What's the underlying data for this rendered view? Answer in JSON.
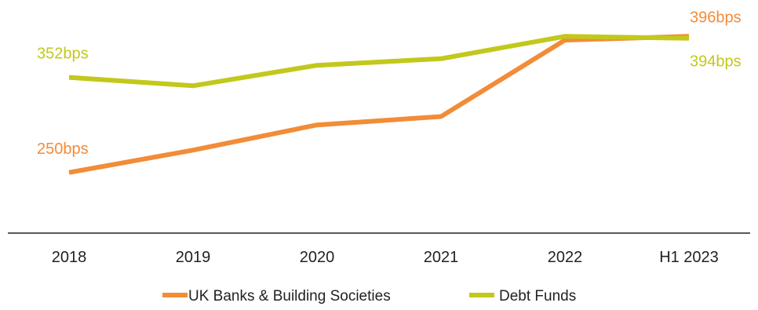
{
  "chart_data": {
    "type": "line",
    "categories": [
      "2018",
      "2019",
      "2020",
      "2021",
      "2022",
      "H1 2023"
    ],
    "series": [
      {
        "name": "UK Banks & Building Societies",
        "color": "#F28C38",
        "values": [
          250,
          274,
          301,
          310,
          392,
          396
        ]
      },
      {
        "name": "Debt Funds",
        "color": "#C2C81C",
        "values": [
          352,
          343,
          365,
          372,
          396,
          394
        ]
      }
    ],
    "data_labels": [
      {
        "series": 0,
        "index": 0,
        "text": "250bps"
      },
      {
        "series": 0,
        "index": 5,
        "text": "396bps"
      },
      {
        "series": 1,
        "index": 0,
        "text": "352bps"
      },
      {
        "series": 1,
        "index": 5,
        "text": "394bps"
      }
    ],
    "title": "",
    "xlabel": "",
    "ylabel": "",
    "ylim": [
      185,
      435
    ],
    "grid": false,
    "legend_position": "bottom"
  }
}
